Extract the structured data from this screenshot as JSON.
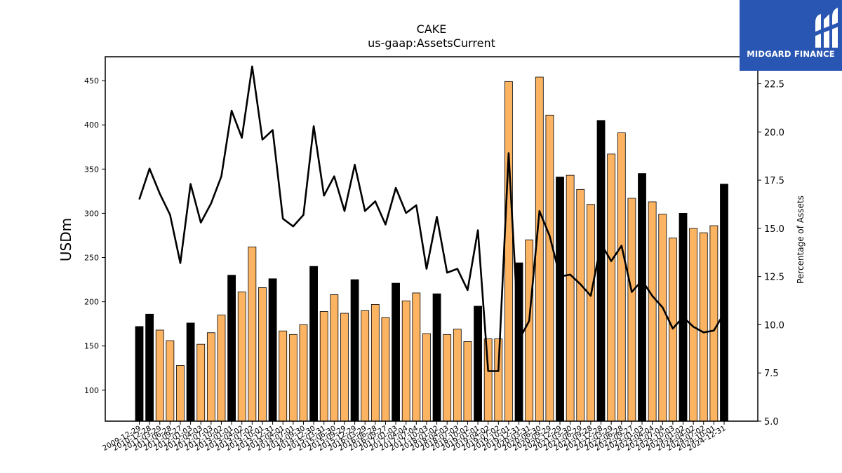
{
  "chart_data": {
    "type": "bar",
    "title": "CAKE",
    "subtitle": "us-gaap:AssetsCurrent",
    "ylabel": "USDm",
    "y2label": "Percentage of Assets",
    "ylim": [
      65,
      477
    ],
    "y2lim": [
      5.0,
      23.9
    ],
    "yticks": [
      100,
      150,
      200,
      250,
      300,
      350,
      400,
      450
    ],
    "y2ticks": [
      5.0,
      7.5,
      10.0,
      12.5,
      15.0,
      17.5,
      20.0,
      22.5
    ],
    "colors": {
      "annual": "#000000",
      "quarterly": "#fdb462",
      "line": "#000000"
    },
    "categories": [
      "2009-12-29",
      "2010-12-28",
      "2011-03-29",
      "2011-06-28",
      "2011-09-27",
      "2012-01-03",
      "2012-04-03",
      "2012-07-03",
      "2012-10-02",
      "2013-01-01",
      "2013-04-02",
      "2013-07-02",
      "2013-10-01",
      "2013-12-31",
      "2014-04-01",
      "2014-07-01",
      "2014-09-30",
      "2014-12-30",
      "2015-03-31",
      "2015-06-30",
      "2015-09-29",
      "2015-12-29",
      "2016-03-29",
      "2016-06-28",
      "2016-09-27",
      "2017-01-03",
      "2017-04-04",
      "2017-07-04",
      "2017-10-03",
      "2018-01-02",
      "2018-04-03",
      "2018-07-03",
      "2018-10-02",
      "2019-01-01",
      "2019-04-02",
      "2019-07-02",
      "2019-10-01",
      "2019-12-31",
      "2020-03-31",
      "2020-06-30",
      "2020-09-29",
      "2020-12-29",
      "2021-03-30",
      "2021-06-29",
      "2021-09-28",
      "2021-12-28",
      "2022-03-29",
      "2022-06-28",
      "2022-09-27",
      "2023-01-03",
      "2023-04-04",
      "2023-07-04",
      "2023-10-03",
      "2024-01-02",
      "2024-04-02",
      "2024-07-02",
      "2024-10-01",
      "2024-12-31"
    ],
    "series": [
      {
        "kind": "bar",
        "values": [
          172,
          186,
          168,
          156,
          128,
          176,
          152,
          165,
          185,
          230,
          211,
          262,
          216,
          226,
          167,
          163,
          174,
          240,
          189,
          208,
          187,
          225,
          190,
          197,
          182,
          221,
          201,
          210,
          164,
          209,
          163,
          169,
          155,
          195,
          158,
          158,
          449,
          244,
          270,
          454,
          411,
          341,
          343,
          327,
          310,
          405,
          367,
          391,
          317,
          345,
          313,
          299,
          272,
          300,
          283,
          278,
          286,
          333
        ],
        "annual": [
          true,
          true,
          false,
          false,
          false,
          true,
          false,
          false,
          false,
          true,
          false,
          false,
          false,
          true,
          false,
          false,
          false,
          true,
          false,
          false,
          false,
          true,
          false,
          false,
          false,
          true,
          false,
          false,
          false,
          true,
          false,
          false,
          false,
          true,
          false,
          false,
          false,
          true,
          false,
          false,
          false,
          true,
          false,
          false,
          false,
          true,
          false,
          false,
          false,
          true,
          false,
          false,
          false,
          true,
          false,
          false,
          false,
          true
        ]
      },
      {
        "kind": "line",
        "axis": "right",
        "values": [
          16.5,
          18.1,
          16.8,
          15.7,
          13.2,
          17.3,
          15.3,
          16.3,
          17.7,
          21.1,
          19.7,
          23.4,
          19.6,
          20.1,
          15.5,
          15.1,
          15.7,
          20.3,
          16.7,
          17.7,
          15.9,
          18.3,
          15.9,
          16.4,
          15.2,
          17.1,
          15.8,
          16.2,
          12.9,
          15.6,
          12.7,
          12.9,
          11.8,
          14.9,
          7.6,
          7.6,
          18.9,
          9.2,
          10.2,
          15.9,
          14.6,
          12.5,
          12.6,
          12.1,
          11.5,
          14.2,
          13.3,
          14.1,
          11.7,
          12.3,
          11.5,
          10.9,
          9.8,
          10.4,
          9.9,
          9.6,
          9.7,
          10.6
        ]
      }
    ]
  },
  "logo": {
    "text": "MIDGARD FINANCE"
  }
}
